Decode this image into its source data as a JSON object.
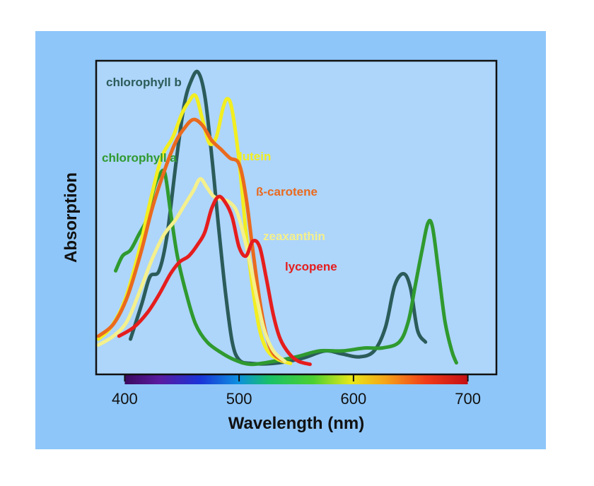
{
  "chart_data": {
    "type": "line",
    "title": "",
    "xlabel": "Wavelength (nm)",
    "ylabel": "Absorption",
    "xlim": [
      375,
      725
    ],
    "ylim": [
      0,
      100
    ],
    "x_ticks": [
      400,
      500,
      600,
      700
    ],
    "spectrum_bar": {
      "from": 400,
      "to": 700
    },
    "background_color": "#8ec6f9",
    "grid": false,
    "series": [
      {
        "name": "chlorophyll b",
        "color": "#2b5c5a",
        "points": [
          [
            405,
            10
          ],
          [
            415,
            22
          ],
          [
            422,
            31
          ],
          [
            430,
            33
          ],
          [
            437,
            45
          ],
          [
            445,
            70
          ],
          [
            452,
            89
          ],
          [
            458,
            97
          ],
          [
            464,
            100
          ],
          [
            470,
            92
          ],
          [
            476,
            72
          ],
          [
            482,
            48
          ],
          [
            488,
            26
          ],
          [
            494,
            9
          ],
          [
            500,
            3
          ],
          [
            510,
            1.8
          ],
          [
            530,
            1.8
          ],
          [
            555,
            3.5
          ],
          [
            575,
            6
          ],
          [
            590,
            5
          ],
          [
            605,
            4
          ],
          [
            618,
            6
          ],
          [
            628,
            14
          ],
          [
            636,
            28
          ],
          [
            644,
            32
          ],
          [
            650,
            27
          ],
          [
            656,
            13
          ],
          [
            663,
            9
          ]
        ]
      },
      {
        "name": "chlorophyll a",
        "color": "#2f9a2f",
        "points": [
          [
            392,
            33
          ],
          [
            398,
            38
          ],
          [
            405,
            40
          ],
          [
            412,
            45
          ],
          [
            420,
            51
          ],
          [
            425,
            60
          ],
          [
            430,
            65
          ],
          [
            435,
            66
          ],
          [
            440,
            53
          ],
          [
            446,
            38
          ],
          [
            454,
            25
          ],
          [
            462,
            15
          ],
          [
            472,
            9
          ],
          [
            484,
            5.5
          ],
          [
            496,
            3
          ],
          [
            510,
            1.5
          ],
          [
            530,
            2.5
          ],
          [
            550,
            4
          ],
          [
            570,
            6
          ],
          [
            590,
            6
          ],
          [
            610,
            7
          ],
          [
            625,
            7
          ],
          [
            640,
            9
          ],
          [
            648,
            16
          ],
          [
            654,
            28
          ],
          [
            660,
            40
          ],
          [
            665,
            49
          ],
          [
            669,
            48
          ],
          [
            674,
            34
          ],
          [
            680,
            16
          ],
          [
            686,
            6
          ],
          [
            690,
            2
          ]
        ]
      },
      {
        "name": "lutein",
        "color": "#f2ee20",
        "points": [
          [
            377,
            10
          ],
          [
            388,
            14
          ],
          [
            400,
            23
          ],
          [
            412,
            39
          ],
          [
            422,
            56
          ],
          [
            432,
            71
          ],
          [
            442,
            78
          ],
          [
            450,
            86
          ],
          [
            456,
            90
          ],
          [
            462,
            92
          ],
          [
            468,
            84
          ],
          [
            474,
            76
          ],
          [
            480,
            78
          ],
          [
            486,
            88
          ],
          [
            490,
            91
          ],
          [
            494,
            87
          ],
          [
            500,
            70
          ],
          [
            506,
            46
          ],
          [
            512,
            27
          ],
          [
            518,
            13
          ],
          [
            525,
            6
          ],
          [
            535,
            3
          ],
          [
            545,
            1.8
          ]
        ]
      },
      {
        "name": "ß-carotene",
        "color": "#ea6a1e",
        "points": [
          [
            377,
            11
          ],
          [
            390,
            15
          ],
          [
            402,
            24
          ],
          [
            414,
            39
          ],
          [
            424,
            54
          ],
          [
            434,
            66
          ],
          [
            444,
            76
          ],
          [
            452,
            81
          ],
          [
            460,
            84
          ],
          [
            468,
            82
          ],
          [
            476,
            77
          ],
          [
            484,
            74
          ],
          [
            492,
            71
          ],
          [
            500,
            69
          ],
          [
            506,
            58
          ],
          [
            512,
            40
          ],
          [
            518,
            23
          ],
          [
            524,
            11
          ],
          [
            530,
            5
          ],
          [
            540,
            2.5
          ]
        ]
      },
      {
        "name": "zeaxanthin",
        "color": "#f4f08c",
        "points": [
          [
            377,
            8
          ],
          [
            390,
            11
          ],
          [
            402,
            16
          ],
          [
            414,
            27
          ],
          [
            424,
            37
          ],
          [
            434,
            45
          ],
          [
            444,
            50
          ],
          [
            452,
            55
          ],
          [
            460,
            60
          ],
          [
            466,
            64
          ],
          [
            472,
            61
          ],
          [
            478,
            58
          ],
          [
            486,
            57
          ],
          [
            492,
            56
          ],
          [
            498,
            53
          ],
          [
            504,
            45
          ],
          [
            510,
            35
          ],
          [
            516,
            23
          ],
          [
            522,
            13
          ],
          [
            530,
            6
          ],
          [
            540,
            2.5
          ]
        ]
      },
      {
        "name": "lycopene",
        "color": "#e51d1d",
        "points": [
          [
            395,
            11
          ],
          [
            408,
            14
          ],
          [
            420,
            19
          ],
          [
            430,
            25
          ],
          [
            440,
            32
          ],
          [
            448,
            36
          ],
          [
            456,
            38
          ],
          [
            464,
            42
          ],
          [
            470,
            46
          ],
          [
            476,
            54
          ],
          [
            482,
            58
          ],
          [
            488,
            56
          ],
          [
            494,
            51
          ],
          [
            500,
            41
          ],
          [
            506,
            38
          ],
          [
            512,
            43
          ],
          [
            518,
            41
          ],
          [
            524,
            30
          ],
          [
            530,
            18
          ],
          [
            536,
            10
          ],
          [
            544,
            5
          ],
          [
            552,
            2.5
          ],
          [
            562,
            1.5
          ]
        ]
      }
    ]
  }
}
